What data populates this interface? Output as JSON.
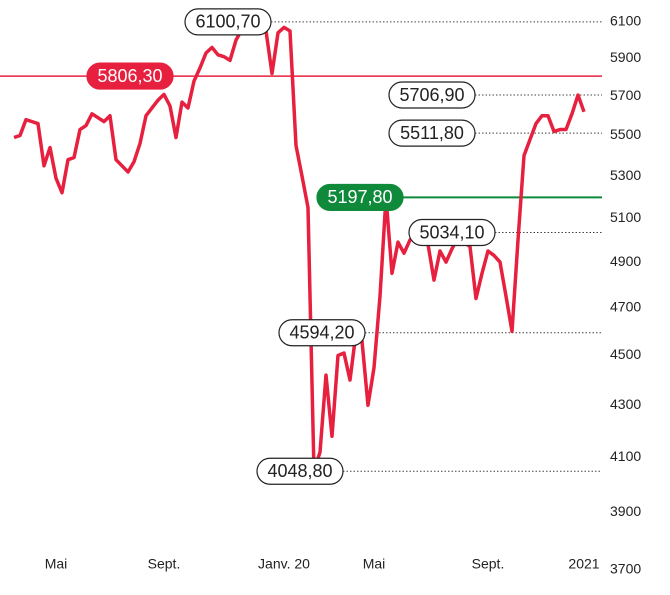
{
  "chart_data": {
    "type": "line",
    "categories": [
      null,
      null,
      null,
      null,
      null,
      null,
      null,
      "Mai",
      null,
      null,
      null,
      null,
      null,
      null,
      null,
      null,
      null,
      null,
      null,
      null,
      null,
      null,
      null,
      null,
      null,
      "Sept.",
      null,
      null,
      null,
      null,
      null,
      null,
      null,
      null,
      null,
      null,
      null,
      null,
      null,
      null,
      null,
      null,
      null,
      null,
      null,
      "Janv. 20",
      null,
      null,
      null,
      null,
      null,
      null,
      null,
      null,
      null,
      null,
      null,
      null,
      null,
      null,
      "Mai",
      null,
      null,
      null,
      null,
      null,
      null,
      null,
      null,
      null,
      null,
      null,
      null,
      null,
      null,
      null,
      null,
      null,
      null,
      "Sept.",
      null,
      null,
      null,
      null,
      null,
      null,
      null,
      null,
      null,
      null,
      null,
      null,
      null,
      null,
      null,
      "2021"
    ],
    "values": [
      5490,
      5500,
      5580,
      5570,
      5560,
      5350,
      5440,
      5290,
      5220,
      5380,
      5390,
      5530,
      5550,
      5610,
      5590,
      5570,
      5600,
      5380,
      5350,
      5320,
      5370,
      5460,
      5600,
      5640,
      5680,
      5710,
      5650,
      5490,
      5670,
      5640,
      5780,
      5850,
      5930,
      5960,
      5920,
      5910,
      5890,
      6000,
      6060,
      6100.7,
      6090,
      6080,
      6050,
      5820,
      6040,
      6070,
      6050,
      5450,
      5300,
      5150,
      4048.8,
      4120,
      4420,
      4180,
      4500,
      4510,
      4400,
      4594.2,
      4560,
      4300,
      4450,
      4750,
      5197.8,
      4850,
      4990,
      4940,
      5000,
      5034.1,
      5000,
      4980,
      4820,
      4950,
      4900,
      4960,
      5010,
      4990,
      4970,
      4740,
      4850,
      4950,
      4930,
      4900,
      4750,
      4600,
      5000,
      5400,
      5480,
      5560,
      5600,
      5600,
      5520,
      5530,
      5530,
      5610,
      5706.9,
      5620
    ],
    "color": "#e8203f",
    "log_scale": true,
    "ylim": [
      3700,
      6100
    ],
    "yticks": [
      3700,
      3900,
      4100,
      4300,
      4500,
      4700,
      4900,
      5100,
      5300,
      5500,
      5700,
      5900,
      6100
    ],
    "annotations": [
      {
        "value": 6100.7,
        "label": "6100,70"
      },
      {
        "value": 5806.3,
        "label": "5806,30",
        "color": "#e8203f"
      },
      {
        "value": 5706.9,
        "label": "5706,90"
      },
      {
        "value": 5511.8,
        "label": "5511,80"
      },
      {
        "value": 5197.8,
        "label": "5197,80",
        "color": "#0f8a3a"
      },
      {
        "value": 5034.1,
        "label": "5034,10"
      },
      {
        "value": 4594.2,
        "label": "4594,20"
      },
      {
        "value": 4048.8,
        "label": "4048,80"
      }
    ]
  }
}
